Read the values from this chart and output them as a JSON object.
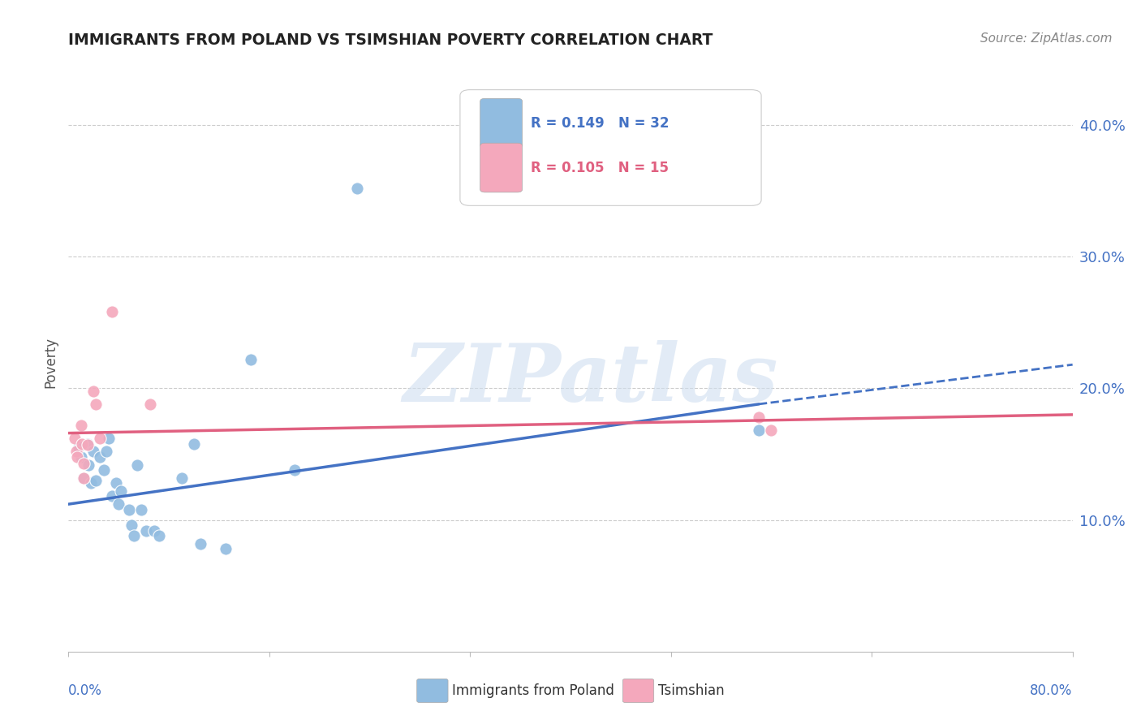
{
  "title": "IMMIGRANTS FROM POLAND VS TSIMSHIAN POVERTY CORRELATION CHART",
  "source": "Source: ZipAtlas.com",
  "ylabel": "Poverty",
  "yticks": [
    0.0,
    0.1,
    0.2,
    0.3,
    0.4
  ],
  "ytick_labels": [
    "",
    "10.0%",
    "20.0%",
    "30.0%",
    "40.0%"
  ],
  "xtick_labels": [
    "0.0%",
    "",
    "",
    "",
    "",
    "80.0%"
  ],
  "xlim": [
    0.0,
    0.8
  ],
  "ylim": [
    0.0,
    0.44
  ],
  "legend_r1": "R = 0.149",
  "legend_n1": "N = 32",
  "legend_r2": "R = 0.105",
  "legend_n2": "N = 15",
  "legend_label1": "Immigrants from Poland",
  "legend_label2": "Tsimshian",
  "blue_color": "#91bce0",
  "pink_color": "#f4a8bc",
  "blue_line_color": "#4472c4",
  "pink_line_color": "#e06080",
  "watermark_text": "ZIPatlas",
  "blue_points": [
    [
      0.008,
      0.155
    ],
    [
      0.01,
      0.148
    ],
    [
      0.012,
      0.132
    ],
    [
      0.015,
      0.158
    ],
    [
      0.016,
      0.142
    ],
    [
      0.018,
      0.128
    ],
    [
      0.02,
      0.152
    ],
    [
      0.022,
      0.13
    ],
    [
      0.025,
      0.148
    ],
    [
      0.028,
      0.138
    ],
    [
      0.03,
      0.152
    ],
    [
      0.032,
      0.162
    ],
    [
      0.035,
      0.118
    ],
    [
      0.038,
      0.128
    ],
    [
      0.04,
      0.112
    ],
    [
      0.042,
      0.122
    ],
    [
      0.048,
      0.108
    ],
    [
      0.05,
      0.096
    ],
    [
      0.052,
      0.088
    ],
    [
      0.055,
      0.142
    ],
    [
      0.058,
      0.108
    ],
    [
      0.062,
      0.092
    ],
    [
      0.068,
      0.092
    ],
    [
      0.072,
      0.088
    ],
    [
      0.09,
      0.132
    ],
    [
      0.1,
      0.158
    ],
    [
      0.105,
      0.082
    ],
    [
      0.125,
      0.078
    ],
    [
      0.145,
      0.222
    ],
    [
      0.18,
      0.138
    ],
    [
      0.55,
      0.168
    ],
    [
      0.23,
      0.352
    ]
  ],
  "pink_points": [
    [
      0.005,
      0.162
    ],
    [
      0.006,
      0.152
    ],
    [
      0.007,
      0.148
    ],
    [
      0.01,
      0.172
    ],
    [
      0.011,
      0.158
    ],
    [
      0.012,
      0.143
    ],
    [
      0.015,
      0.157
    ],
    [
      0.02,
      0.198
    ],
    [
      0.022,
      0.188
    ],
    [
      0.025,
      0.162
    ],
    [
      0.035,
      0.258
    ],
    [
      0.065,
      0.188
    ],
    [
      0.55,
      0.178
    ],
    [
      0.56,
      0.168
    ],
    [
      0.012,
      0.132
    ]
  ],
  "blue_trendline": [
    [
      0.0,
      0.112
    ],
    [
      0.55,
      0.188
    ]
  ],
  "blue_trendline_dashed": [
    [
      0.55,
      0.188
    ],
    [
      0.8,
      0.218
    ]
  ],
  "pink_trendline": [
    [
      0.0,
      0.166
    ],
    [
      0.8,
      0.18
    ]
  ]
}
